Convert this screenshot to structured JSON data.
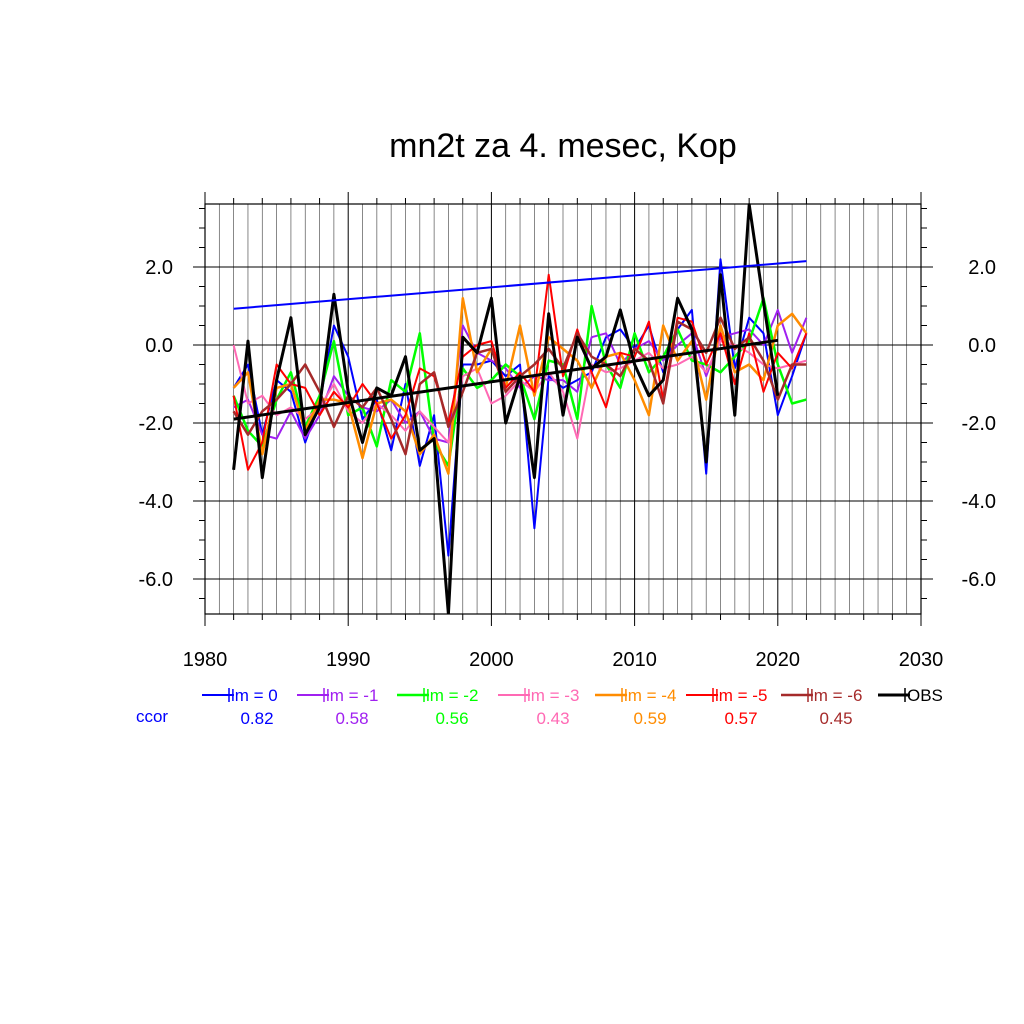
{
  "chart_data": {
    "type": "line",
    "title": "mn2t za 4. mesec, Kop",
    "xlim": [
      1980,
      2030
    ],
    "ylim": [
      -6.9,
      3.6
    ],
    "x_ticks": [
      "1980",
      "1990",
      "2000",
      "2010",
      "2020",
      "2030"
    ],
    "y_ticks": [
      "2.0",
      "0.0",
      "-2.0",
      "-4.0",
      "-6.0"
    ],
    "grid": true,
    "legend_placement": "bottom",
    "ccor_label": "ccor",
    "x": [
      1982,
      1983,
      1984,
      1985,
      1986,
      1987,
      1988,
      1989,
      1990,
      1991,
      1992,
      1993,
      1994,
      1995,
      1996,
      1997,
      1998,
      1999,
      2000,
      2001,
      2002,
      2003,
      2004,
      2005,
      2006,
      2007,
      2008,
      2009,
      2010,
      2011,
      2012,
      2013,
      2014,
      2015,
      2016,
      2017,
      2018,
      2019,
      2020,
      2021,
      2022
    ],
    "series": [
      {
        "name": "lm = 0",
        "ccor": "0.82",
        "color": "#0000ff",
        "width": 2,
        "values": [
          -1.1,
          -0.5,
          -2.3,
          -0.9,
          -1.2,
          -2.5,
          -1.5,
          0.5,
          -0.3,
          -1.9,
          -1.4,
          -2.7,
          -1.0,
          -3.1,
          -1.8,
          -5.4,
          -0.5,
          -0.5,
          -0.4,
          -0.8,
          -0.5,
          -4.7,
          -0.8,
          -1.1,
          -0.9,
          -0.7,
          0.2,
          0.4,
          -0.1,
          0.5,
          -0.7,
          0.4,
          0.9,
          -3.3,
          2.2,
          -0.6,
          0.7,
          0.3,
          -1.8,
          -0.8,
          0.3
        ]
      },
      {
        "name": "lm = -1",
        "ccor": "0.58",
        "color": "#a020f0",
        "width": 2,
        "values": [
          -1.6,
          -1.4,
          -2.3,
          -2.4,
          -1.7,
          -2.4,
          -1.8,
          -0.8,
          -1.3,
          -1.6,
          -1.7,
          -1.4,
          -2.0,
          -1.7,
          -2.4,
          -2.5,
          0.5,
          -0.2,
          -0.4,
          -0.6,
          -1.1,
          -0.8,
          -0.9,
          -0.9,
          -1.2,
          0.2,
          0.3,
          -0.5,
          -0.1,
          0.1,
          -0.4,
          0.0,
          0.3,
          -0.8,
          0.2,
          0.3,
          0.4,
          0.0,
          0.9,
          -0.2,
          0.7
        ]
      },
      {
        "name": "lm = -2",
        "ccor": "0.56",
        "color": "#00ff00",
        "width": 2.5,
        "values": [
          -1.3,
          -2.2,
          -2.6,
          -1.4,
          -0.7,
          -2.1,
          -1.3,
          0.1,
          -1.8,
          -1.6,
          -2.6,
          -0.9,
          -1.2,
          0.3,
          -2.5,
          -3.1,
          -0.6,
          -1.1,
          -0.9,
          -0.5,
          -0.8,
          -1.9,
          -0.4,
          -0.5,
          -1.9,
          1.0,
          -0.5,
          -1.1,
          0.3,
          -0.7,
          -0.3,
          0.4,
          -0.4,
          -0.5,
          -0.7,
          -0.3,
          0.1,
          1.2,
          -0.5,
          -1.5,
          -1.4
        ]
      },
      {
        "name": "lm = -3",
        "ccor": "0.43",
        "color": "#ff69b4",
        "width": 2,
        "values": [
          0.0,
          -1.5,
          -1.3,
          -1.8,
          -1.6,
          -1.9,
          -1.6,
          -1.0,
          -1.7,
          -2.0,
          -1.5,
          -1.8,
          -2.2,
          -1.7,
          -2.1,
          -2.5,
          -0.8,
          -0.6,
          -1.5,
          -1.3,
          -0.9,
          -1.2,
          -0.7,
          -1.2,
          -2.4,
          -0.5,
          -0.7,
          -0.6,
          -0.4,
          -0.2,
          -0.6,
          -0.5,
          -0.3,
          -0.7,
          0.1,
          0.0,
          -0.2,
          -0.5,
          -0.6,
          -0.5,
          -0.4
        ]
      },
      {
        "name": "lm = -4",
        "ccor": "0.59",
        "color": "#ff8c00",
        "width": 2.5,
        "values": [
          -1.1,
          -0.7,
          -2.8,
          -1.1,
          -1.0,
          -2.2,
          -1.4,
          -1.4,
          -1.5,
          -2.9,
          -1.5,
          -1.4,
          -1.7,
          -2.8,
          -2.3,
          -3.3,
          1.2,
          -0.7,
          -0.1,
          -1.1,
          0.5,
          -1.3,
          0.2,
          -0.1,
          -0.4,
          -1.1,
          -0.3,
          -0.2,
          -0.9,
          -1.8,
          0.5,
          -0.4,
          0.1,
          -1.4,
          0.5,
          -0.7,
          -0.5,
          -0.9,
          0.5,
          0.8,
          0.3
        ]
      },
      {
        "name": "lm = -5",
        "ccor": "0.57",
        "color": "#ff0000",
        "width": 2,
        "values": [
          -1.3,
          -3.2,
          -2.5,
          -0.5,
          -1.0,
          -1.1,
          -1.8,
          -1.2,
          -1.6,
          -1.0,
          -1.5,
          -2.4,
          -1.8,
          -0.6,
          -0.8,
          -2.0,
          -0.3,
          0.0,
          0.1,
          -1.1,
          -0.7,
          -1.2,
          1.8,
          -0.8,
          0.4,
          -0.7,
          -1.6,
          -0.2,
          -0.3,
          0.6,
          -1.4,
          0.7,
          0.6,
          -0.5,
          0.3,
          -1.0,
          0.3,
          -1.2,
          -0.2,
          -0.6,
          0.3
        ]
      },
      {
        "name": "lm = -6",
        "ccor": "0.45",
        "color": "#a52a2a",
        "width": 2.5,
        "values": [
          -1.7,
          -2.3,
          -1.7,
          -1.4,
          -1.0,
          -0.5,
          -1.2,
          -2.1,
          -1.3,
          -1.6,
          -1.1,
          -1.9,
          -2.8,
          -1.0,
          -0.7,
          -2.1,
          -1.2,
          -0.2,
          -0.1,
          -1.2,
          -0.8,
          -0.5,
          -0.1,
          -0.6,
          0.3,
          -0.3,
          -0.5,
          -0.8,
          -0.1,
          -0.4,
          -1.5,
          0.6,
          0.4,
          -0.2,
          0.7,
          -0.1,
          0.2,
          -0.4,
          -1.4,
          -0.5,
          -0.5
        ]
      },
      {
        "name": "OBS",
        "ccor": "",
        "color": "#000000",
        "width": 3,
        "values": [
          -3.2,
          0.1,
          -3.4,
          -0.9,
          0.7,
          -2.3,
          -1.6,
          1.3,
          -1.2,
          -2.5,
          -1.1,
          -1.3,
          -0.3,
          -2.7,
          -2.4,
          -6.9,
          0.2,
          -0.2,
          1.2,
          -2.0,
          -0.8,
          -3.4,
          0.8,
          -1.8,
          0.2,
          -0.6,
          -0.3,
          0.9,
          -0.5,
          -1.3,
          -0.9,
          1.2,
          0.4,
          -3.0,
          1.8,
          -1.8,
          3.6,
          1.1,
          -1.3,
          null,
          null
        ]
      }
    ],
    "trend_lines": [
      {
        "name": "lm = 0 trend",
        "color": "#0000ff",
        "width": 2,
        "x": [
          1982,
          2022
        ],
        "y": [
          0.93,
          2.15
        ]
      },
      {
        "name": "OBS trend",
        "color": "#000000",
        "width": 3,
        "x": [
          1982,
          2020
        ],
        "y": [
          -1.9,
          0.12
        ]
      }
    ]
  }
}
